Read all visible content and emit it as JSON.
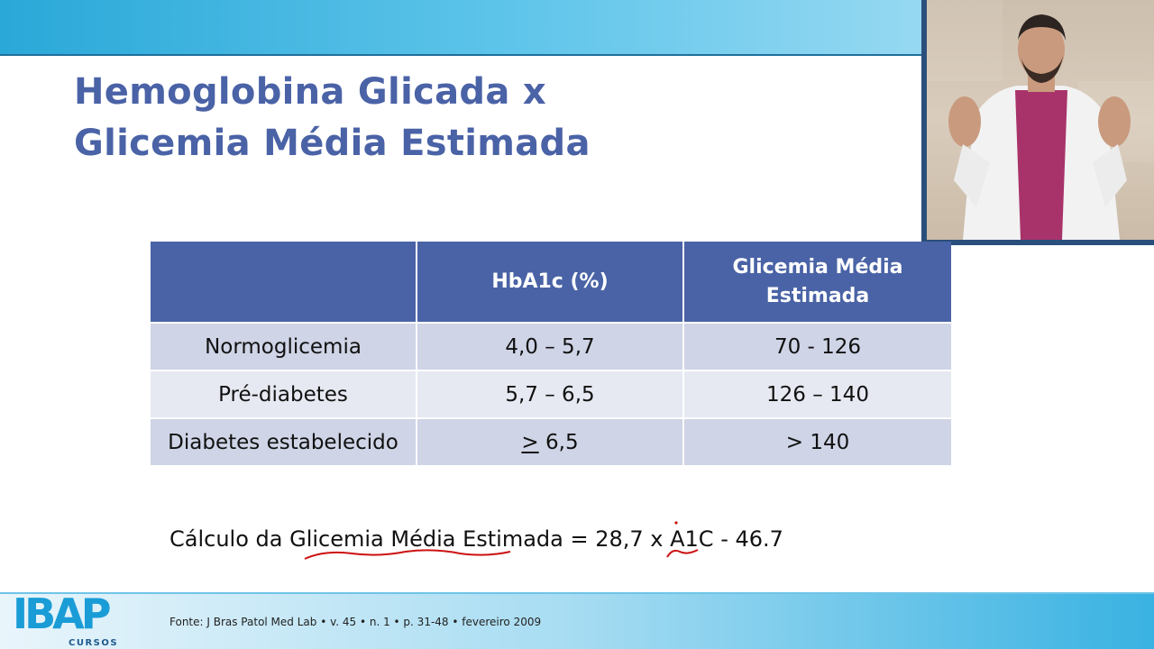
{
  "slide": {
    "title_line1": "Hemoglobina Glicada x",
    "title_line2": "Glicemia Média Estimada"
  },
  "table": {
    "headers": [
      "",
      "HbA1c (%)",
      "Glicemia Média Estimada"
    ],
    "header_col3_line1": "Glicemia Média",
    "header_col3_line2": "Estimada",
    "rows": [
      {
        "label": "Normoglicemia",
        "hba1c": "4,0 – 5,7",
        "glicemia": "70 - 126"
      },
      {
        "label": "Pré-diabetes",
        "hba1c": "5,7 – 6,5",
        "glicemia": "126 – 140"
      },
      {
        "label": "Diabetes estabelecido",
        "hba1c_symbol": ">",
        "hba1c_value": " 6,5",
        "glicemia": "> 140"
      }
    ]
  },
  "formula": {
    "text": "Cálculo da Glicemia Média Estimada = 28,7 x A1C - 46.7"
  },
  "footer": {
    "source": "Fonte: J Bras Patol Med Lab • v. 45 • n. 1 • p. 31-48 • fevereiro 2009",
    "logo_text": "IBAP",
    "logo_sub": "CURSOS"
  },
  "colors": {
    "title": "#4a62a6",
    "header_bg": "#4a63a6",
    "row_dark": "#cfd4e6",
    "row_light": "#e7e9f2",
    "annotation": "#cc1111",
    "logo": "#1a9cd6"
  },
  "webcam": {
    "description_icon": "presenter-video"
  }
}
